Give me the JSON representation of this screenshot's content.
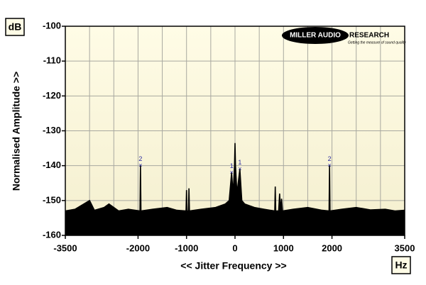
{
  "chart_data": {
    "type": "line",
    "y_unit": "dB",
    "x_unit": "Hz",
    "ylabel": "Normalised Amplitude >>",
    "xlabel": "<< Jitter Frequency >>",
    "logo": [
      "MILLER AUDIO",
      "RESEARCH"
    ],
    "logo_tagline": "Getting the measure of sound quality",
    "xlim": [
      -3500,
      3500
    ],
    "ylim": [
      -160,
      -100
    ],
    "xticks": [
      -3500,
      -2000,
      -1000,
      0,
      1000,
      2000,
      3500
    ],
    "yticks": [
      -100,
      -110,
      -120,
      -130,
      -140,
      -150,
      -160
    ],
    "xgrid": [
      -3000,
      -2500,
      -2000,
      -1500,
      -1000,
      -500,
      0,
      500,
      1000,
      1500,
      2000,
      2500,
      3000
    ],
    "grid": true,
    "series": [
      {
        "color": "#000000",
        "x": [
          -3500,
          -3300,
          -3000,
          -2900,
          -2700,
          -2600,
          -2400,
          -2200,
          -1960,
          -1950,
          -1940,
          -1700,
          -1400,
          -1200,
          -1010,
          -1000,
          -990,
          -960,
          -950,
          -940,
          -700,
          -400,
          -200,
          -120,
          -70,
          -40,
          -10,
          0,
          10,
          40,
          100,
          140,
          200,
          400,
          600,
          820,
          830,
          840,
          900,
          920,
          940,
          960,
          980,
          1200,
          1500,
          1800,
          1940,
          1950,
          1960,
          2200,
          2500,
          2800,
          3100,
          3300,
          3500
        ],
        "values": [
          -153,
          -152.5,
          -150,
          -152.8,
          -152,
          -151,
          -153,
          -152.5,
          -153,
          -140,
          -153,
          -152.5,
          -152,
          -152.8,
          -153,
          -147,
          -153,
          -153,
          -146.5,
          -153,
          -152.5,
          -152,
          -151,
          -150,
          -142,
          -148,
          -140,
          -133.5,
          -140,
          -148,
          -141,
          -150,
          -151,
          -152,
          -152.5,
          -153,
          -146,
          -153,
          -153,
          -148,
          -153,
          -149.5,
          -153,
          -152.5,
          -152,
          -152.8,
          -153,
          -140,
          -153,
          -152.5,
          -152,
          -152.7,
          -152.5,
          -153,
          -152.8
        ]
      }
    ],
    "annotations": [
      {
        "label": "2",
        "x": -1950,
        "y": -140
      },
      {
        "label": "1",
        "x": -70,
        "y": -142
      },
      {
        "label": "1",
        "x": 100,
        "y": -141
      },
      {
        "label": "2",
        "x": 1950,
        "y": -140
      }
    ]
  }
}
